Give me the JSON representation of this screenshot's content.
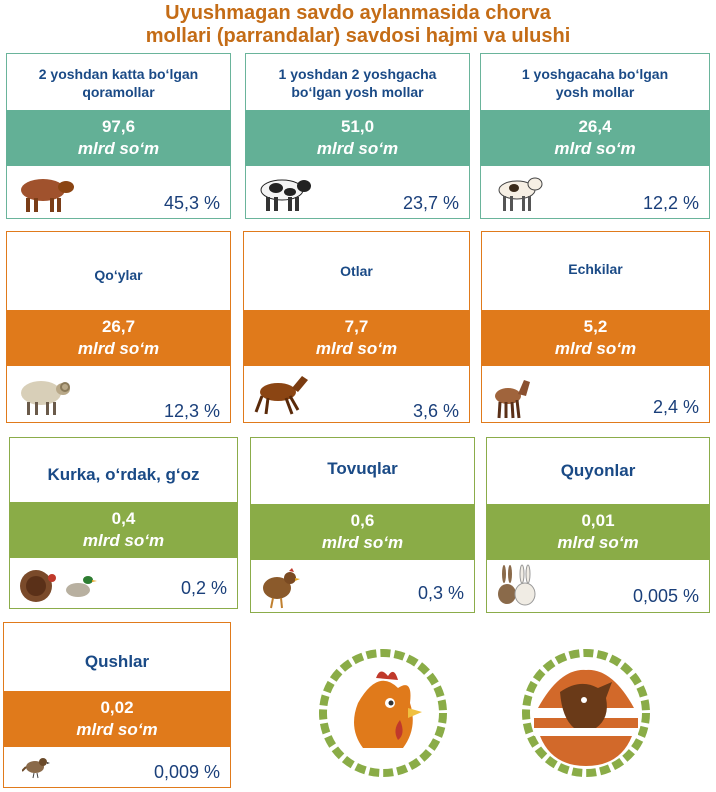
{
  "title_line1": "Uyushmagan savdo aylanmasida chorva",
  "title_line2": "mollari (parrandalar) savdosi hajmi va ulushi",
  "cards": [
    {
      "label_line1": "2 yoshdan katta bo‘lgan",
      "label_line2": "qoramollar",
      "value": "97,6",
      "unit": "mlrd so‘m",
      "percent": "45,3 %",
      "icon": "bull-icon",
      "color": "#63b096"
    },
    {
      "label_line1": "1 yoshdan 2 yoshgacha",
      "label_line2": "bo‘lgan yosh mollar",
      "value": "51,0",
      "unit": "mlrd so‘m",
      "percent": "23,7 %",
      "icon": "cow-icon",
      "color": "#63b096"
    },
    {
      "label_line1": "1 yoshgacaha bo‘lgan",
      "label_line2": "yosh mollar",
      "value": "26,4",
      "unit": "mlrd so‘m",
      "percent": "12,2 %",
      "icon": "calf-icon",
      "color": "#63b096"
    },
    {
      "label_line1": "Qo‘ylar",
      "value": "26,7",
      "unit": "mlrd so‘m",
      "percent": "12,3 %",
      "icon": "sheep-icon",
      "color": "#e07a1b"
    },
    {
      "label_line1": "Otlar",
      "value": "7,7",
      "unit": "mlrd so‘m",
      "percent": "3,6 %",
      "icon": "horse-icon",
      "color": "#e07a1b"
    },
    {
      "label_line1": "Echkilar",
      "value": "5,2",
      "unit": "mlrd so‘m",
      "percent": "2,4 %",
      "icon": "goat-icon",
      "color": "#e07a1b"
    },
    {
      "label_line1": "Kurka, o‘rdak, g‘oz",
      "value": "0,4",
      "unit": "mlrd so‘m",
      "percent": "0,2 %",
      "icon": "turkey-duck-icon",
      "color": "#8aac47"
    },
    {
      "label_line1": "Tovuqlar",
      "value": "0,6",
      "unit": "mlrd so‘m",
      "percent": "0,3 %",
      "icon": "hen-icon",
      "color": "#8aac47"
    },
    {
      "label_line1": "Quyonlar",
      "value": "0,01",
      "unit": "mlrd so‘m",
      "percent": "0,005 %",
      "icon": "rabbit-icon",
      "color": "#8aac47"
    },
    {
      "label_line1": "Qushlar",
      "value": "0,02",
      "unit": "mlrd so‘m",
      "percent": "0,009 %",
      "icon": "sparrow-icon",
      "color": "#e07a1b"
    }
  ],
  "logos": [
    "rooster-logo",
    "cattle-logo"
  ]
}
